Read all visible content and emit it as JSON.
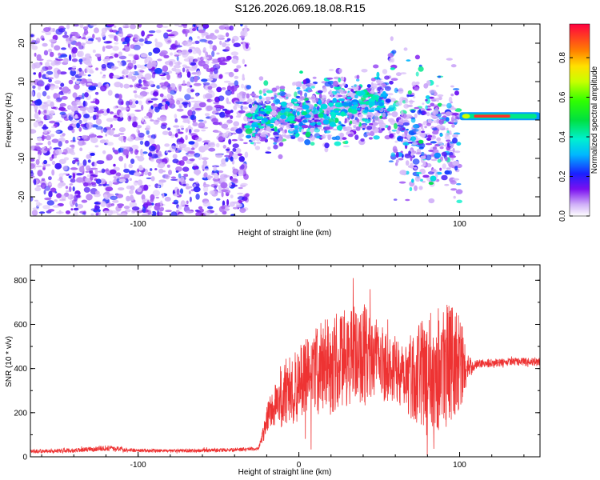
{
  "title": "S126.2026.069.18.08.R15",
  "colors": {
    "spectro_low": "#a020f0",
    "snr_line": "#ee3333",
    "axis": "#000000"
  },
  "chart_data": [
    {
      "type": "heatmap",
      "name": "spectrogram",
      "xlabel": "Height of straight line (km)",
      "ylabel": "Frequency (Hz)",
      "xlim": [
        -167,
        150
      ],
      "ylim": [
        -25,
        25
      ],
      "xticks": [
        -100,
        0,
        100
      ],
      "xtick_labels": [
        "-100",
        "0",
        "100"
      ],
      "yticks": [
        20,
        10,
        0,
        -10,
        -20
      ],
      "ytick_labels": [
        "20",
        "10",
        "0",
        "-10",
        "-20"
      ],
      "regions": [
        {
          "x": [
            -167,
            -32
          ],
          "freq_center": 0,
          "freq_halfwidth": 25,
          "amplitude": 0.15,
          "desc": "noise"
        },
        {
          "x": [
            -32,
            100
          ],
          "freq_center": 0,
          "freq_halfwidth": 7,
          "amplitude": 0.3,
          "desc": "signal spread"
        },
        {
          "x": [
            100,
            150
          ],
          "freq_center": 1,
          "freq_halfwidth": 1,
          "amplitude": 0.95,
          "desc": "strong line"
        }
      ],
      "colorbar": {
        "label": "Normalized spectral amplitude",
        "ticks": [
          0.8,
          0.6,
          0.4,
          0.2,
          0.0
        ],
        "tick_labels": [
          "0.8",
          "0.6",
          "0.4",
          "0.2",
          "0.0"
        ],
        "range": [
          0,
          0.97
        ]
      }
    },
    {
      "type": "line",
      "name": "snr",
      "xlabel": "Height of straight line (km)",
      "ylabel": "SNR (10 * v/v)",
      "xlim": [
        -167,
        150
      ],
      "ylim": [
        0,
        870
      ],
      "xticks": [
        -100,
        0,
        100
      ],
      "xtick_labels": [
        "-100",
        "0",
        "100"
      ],
      "yticks": [
        0,
        200,
        400,
        600,
        800
      ],
      "ytick_labels": [
        "0",
        "200",
        "400",
        "600",
        "800"
      ],
      "envelope": {
        "x": [
          -167,
          -140,
          -120,
          -100,
          -80,
          -60,
          -40,
          -25,
          -18,
          -10,
          0,
          10,
          20,
          30,
          40,
          50,
          60,
          70,
          80,
          90,
          100,
          105,
          110,
          130,
          150
        ],
        "mean": [
          25,
          28,
          40,
          28,
          27,
          28,
          32,
          38,
          210,
          280,
          330,
          390,
          420,
          450,
          470,
          430,
          400,
          370,
          380,
          420,
          430,
          400,
          420,
          430,
          430
        ],
        "amp": [
          8,
          10,
          12,
          8,
          7,
          8,
          8,
          8,
          80,
          160,
          170,
          200,
          230,
          230,
          230,
          180,
          150,
          200,
          260,
          300,
          230,
          60,
          20,
          18,
          20
        ]
      }
    }
  ]
}
